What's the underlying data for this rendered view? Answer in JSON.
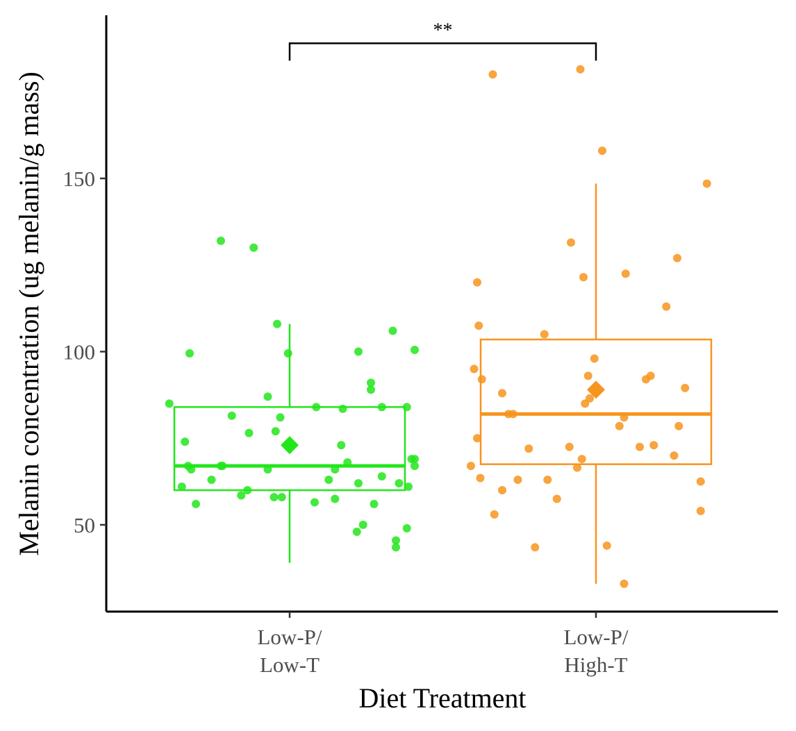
{
  "chart_data": {
    "type": "box",
    "xlabel": "Diet Treatment",
    "ylabel": "Melanin concentration (ug melanin/g mass)",
    "ylim": [
      25,
      197
    ],
    "yticks": [
      50,
      100,
      150
    ],
    "grid": false,
    "legend": "none",
    "groups": [
      {
        "label_lines": [
          "Low-P/",
          "Low-T"
        ],
        "color": "#22e61b",
        "box": {
          "whisker_low": 39,
          "q1": 60,
          "median": 67,
          "q3": 84,
          "whisker_high": 108
        },
        "mean": 73,
        "points": [
          {
            "dx": -0.77,
            "y": 85
          },
          {
            "dx": -0.69,
            "y": 61
          },
          {
            "dx": -0.67,
            "y": 74
          },
          {
            "dx": -0.65,
            "y": 67
          },
          {
            "dx": -0.64,
            "y": 99.5
          },
          {
            "dx": -0.63,
            "y": 66
          },
          {
            "dx": -0.6,
            "y": 56
          },
          {
            "dx": -0.5,
            "y": 63
          },
          {
            "dx": -0.44,
            "y": 67
          },
          {
            "dx": -0.43,
            "y": 67
          },
          {
            "dx": -0.44,
            "y": 132
          },
          {
            "dx": -0.37,
            "y": 81.5
          },
          {
            "dx": -0.31,
            "y": 58.5
          },
          {
            "dx": -0.27,
            "y": 60
          },
          {
            "dx": -0.26,
            "y": 76.5
          },
          {
            "dx": -0.23,
            "y": 130
          },
          {
            "dx": -0.14,
            "y": 66
          },
          {
            "dx": -0.14,
            "y": 87
          },
          {
            "dx": -0.1,
            "y": 58
          },
          {
            "dx": -0.09,
            "y": 77
          },
          {
            "dx": -0.08,
            "y": 108
          },
          {
            "dx": -0.06,
            "y": 81
          },
          {
            "dx": -0.05,
            "y": 58
          },
          {
            "dx": -0.01,
            "y": 99.5
          },
          {
            "dx": 0.16,
            "y": 56.5
          },
          {
            "dx": 0.17,
            "y": 84
          },
          {
            "dx": 0.25,
            "y": 63
          },
          {
            "dx": 0.29,
            "y": 66
          },
          {
            "dx": 0.29,
            "y": 57.5
          },
          {
            "dx": 0.33,
            "y": 73
          },
          {
            "dx": 0.34,
            "y": 83.5
          },
          {
            "dx": 0.37,
            "y": 68
          },
          {
            "dx": 0.43,
            "y": 48
          },
          {
            "dx": 0.44,
            "y": 62
          },
          {
            "dx": 0.44,
            "y": 100
          },
          {
            "dx": 0.47,
            "y": 50
          },
          {
            "dx": 0.52,
            "y": 91
          },
          {
            "dx": 0.52,
            "y": 89
          },
          {
            "dx": 0.54,
            "y": 56
          },
          {
            "dx": 0.59,
            "y": 84
          },
          {
            "dx": 0.59,
            "y": 64
          },
          {
            "dx": 0.66,
            "y": 106
          },
          {
            "dx": 0.68,
            "y": 45.5
          },
          {
            "dx": 0.68,
            "y": 43.5
          },
          {
            "dx": 0.7,
            "y": 62
          },
          {
            "dx": 0.75,
            "y": 84
          },
          {
            "dx": 0.75,
            "y": 49
          },
          {
            "dx": 0.76,
            "y": 61
          },
          {
            "dx": 0.78,
            "y": 69
          },
          {
            "dx": 0.8,
            "y": 69
          },
          {
            "dx": 0.8,
            "y": 67
          },
          {
            "dx": 0.8,
            "y": 100.5
          }
        ]
      },
      {
        "label_lines": [
          "Low-P/",
          "High-T"
        ],
        "color": "#f7941d",
        "box": {
          "whisker_low": 33,
          "q1": 67.5,
          "median": 82,
          "q3": 103.5,
          "whisker_high": 148.5
        },
        "mean": 89,
        "points": [
          {
            "dx": -0.8,
            "y": 67
          },
          {
            "dx": -0.78,
            "y": 95
          },
          {
            "dx": -0.76,
            "y": 120
          },
          {
            "dx": -0.76,
            "y": 75
          },
          {
            "dx": -0.75,
            "y": 107.5
          },
          {
            "dx": -0.74,
            "y": 63.5
          },
          {
            "dx": -0.73,
            "y": 92
          },
          {
            "dx": -0.65,
            "y": 53
          },
          {
            "dx": -0.66,
            "y": 180
          },
          {
            "dx": -0.6,
            "y": 88
          },
          {
            "dx": -0.6,
            "y": 60
          },
          {
            "dx": -0.56,
            "y": 82
          },
          {
            "dx": -0.53,
            "y": 82
          },
          {
            "dx": -0.5,
            "y": 63
          },
          {
            "dx": -0.43,
            "y": 72
          },
          {
            "dx": -0.39,
            "y": 43.5
          },
          {
            "dx": -0.33,
            "y": 105
          },
          {
            "dx": -0.31,
            "y": 63
          },
          {
            "dx": -0.25,
            "y": 57.5
          },
          {
            "dx": -0.17,
            "y": 72.5
          },
          {
            "dx": -0.16,
            "y": 131.5
          },
          {
            "dx": -0.12,
            "y": 66.5
          },
          {
            "dx": -0.09,
            "y": 69
          },
          {
            "dx": -0.08,
            "y": 121.5
          },
          {
            "dx": -0.07,
            "y": 85
          },
          {
            "dx": -0.05,
            "y": 93
          },
          {
            "dx": -0.04,
            "y": 86.5
          },
          {
            "dx": -0.01,
            "y": 98
          },
          {
            "dx": -0.1,
            "y": 181.5
          },
          {
            "dx": 0.04,
            "y": 158
          },
          {
            "dx": 0.07,
            "y": 44
          },
          {
            "dx": 0.15,
            "y": 78.5
          },
          {
            "dx": 0.18,
            "y": 81
          },
          {
            "dx": 0.18,
            "y": 33
          },
          {
            "dx": 0.19,
            "y": 122.5
          },
          {
            "dx": 0.28,
            "y": 72.5
          },
          {
            "dx": 0.32,
            "y": 92
          },
          {
            "dx": 0.35,
            "y": 93
          },
          {
            "dx": 0.37,
            "y": 73
          },
          {
            "dx": 0.45,
            "y": 113
          },
          {
            "dx": 0.5,
            "y": 70
          },
          {
            "dx": 0.52,
            "y": 127
          },
          {
            "dx": 0.53,
            "y": 78.5
          },
          {
            "dx": 0.57,
            "y": 89.5
          },
          {
            "dx": 0.67,
            "y": 62.5
          },
          {
            "dx": 0.67,
            "y": 54
          },
          {
            "dx": 0.71,
            "y": 148.5
          }
        ]
      }
    ],
    "annotation": {
      "text": "**",
      "between": [
        0,
        1
      ],
      "y": 189,
      "tick_drop": 5
    }
  }
}
